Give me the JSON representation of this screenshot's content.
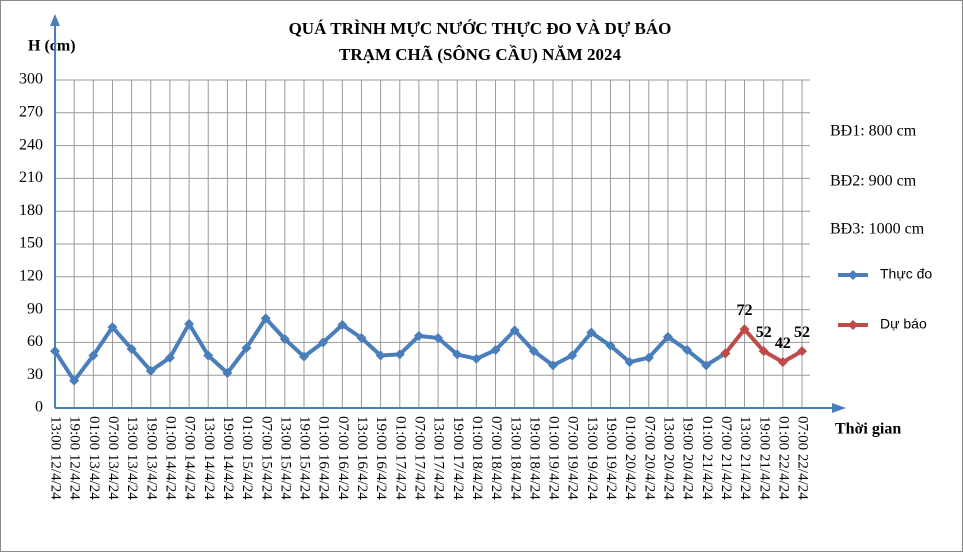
{
  "chart_data": {
    "type": "line",
    "title": [
      "QUÁ TRÌNH MỰC NƯỚC THỰC ĐO VÀ DỰ BÁO",
      "TRẠM CHÃ (SÔNG CẦU) NĂM 2024"
    ],
    "ylabel": "H (cm)",
    "xlabel": "Thời gian",
    "annotations": [
      "BĐ1: 800 cm",
      "BĐ2: 900 cm",
      "BĐ3: 1000 cm"
    ],
    "categories": [
      "13:00 12/4/24",
      "19:00 12/4/24",
      "01:00 13/4/24",
      "07:00 13/4/24",
      "13:00 13/4/24",
      "19:00 13/4/24",
      "01:00 14/4/24",
      "07:00 14/4/24",
      "13:00 14/4/24",
      "19:00 14/4/24",
      "01:00 15/4/24",
      "07:00 15/4/24",
      "13:00 15/4/24",
      "19:00 15/4/24",
      "01:00 16/4/24",
      "07:00 16/4/24",
      "13:00 16/4/24",
      "19:00 16/4/24",
      "01:00 17/4/24",
      "07:00 17/4/24",
      "13:00 17/4/24",
      "19:00 17/4/24",
      "01:00 18/4/24",
      "07:00 18/4/24",
      "13:00 18/4/24",
      "19:00 18/4/24",
      "01:00 19/4/24",
      "07:00 19/4/24",
      "13:00 19/4/24",
      "19:00 19/4/24",
      "01:00 20/4/24",
      "07:00 20/4/24",
      "13:00 20/4/24",
      "19:00 20/4/24",
      "01:00 21/4/24",
      "07:00 21/4/24",
      "13:00 21/4/24",
      "19:00 21/4/24",
      "01:00 22/4/24",
      "07:00 22/4/24"
    ],
    "series": [
      {
        "name": "Thực đo",
        "color": "#4a7ebb",
        "show_labels": false,
        "values": [
          52,
          25,
          48,
          74,
          54,
          34,
          46,
          77,
          48,
          32,
          55,
          82,
          63,
          47,
          60,
          76,
          64,
          48,
          49,
          66,
          64,
          49,
          45,
          53,
          71,
          52,
          39,
          48,
          69,
          57,
          42,
          46,
          65,
          53,
          39,
          50,
          null,
          null,
          null,
          null
        ]
      },
      {
        "name": "Dự báo",
        "color": "#be4b48",
        "show_labels": true,
        "values": [
          null,
          null,
          null,
          null,
          null,
          null,
          null,
          null,
          null,
          null,
          null,
          null,
          null,
          null,
          null,
          null,
          null,
          null,
          null,
          null,
          null,
          null,
          null,
          null,
          null,
          null,
          null,
          null,
          null,
          null,
          null,
          null,
          null,
          null,
          null,
          50,
          72,
          52,
          42,
          52
        ]
      }
    ],
    "ylim": [
      0,
      300
    ],
    "yticks": [
      0,
      30,
      60,
      90,
      120,
      150,
      180,
      210,
      240,
      270,
      300
    ],
    "grid": true
  }
}
